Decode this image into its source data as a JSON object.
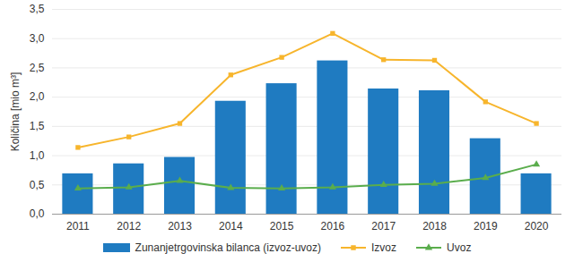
{
  "chart_data": {
    "type": "bar",
    "y_label": "Količina [mio m³]",
    "categories": [
      "2011",
      "2012",
      "2013",
      "2014",
      "2015",
      "2016",
      "2017",
      "2018",
      "2019",
      "2020"
    ],
    "series": [
      {
        "name": "Zunanjetrgovinska bilanca (izvoz-uvoz)",
        "type": "bar",
        "color": "#1f7bc1",
        "values": [
          0.69,
          0.86,
          0.97,
          1.93,
          2.23,
          2.62,
          2.14,
          2.11,
          1.29,
          0.69
        ]
      },
      {
        "name": "Izvoz",
        "type": "line",
        "color": "#f7b52c",
        "marker": "square",
        "values": [
          1.14,
          1.32,
          1.55,
          2.38,
          2.68,
          3.09,
          2.64,
          2.63,
          1.92,
          1.55
        ]
      },
      {
        "name": "Uvoz",
        "type": "line",
        "color": "#5aad4c",
        "marker": "triangle",
        "values": [
          0.44,
          0.46,
          0.57,
          0.45,
          0.44,
          0.46,
          0.5,
          0.52,
          0.62,
          0.85
        ]
      }
    ],
    "ylim": [
      0,
      3.5
    ],
    "yticks": [
      {
        "value": 0,
        "label": "0,0"
      },
      {
        "value": 0.5,
        "label": "0,5"
      },
      {
        "value": 1,
        "label": "1,0"
      },
      {
        "value": 1.5,
        "label": "1,5"
      },
      {
        "value": 2,
        "label": "2,0"
      },
      {
        "value": 2.5,
        "label": "2,5"
      },
      {
        "value": 3,
        "label": "3,0"
      },
      {
        "value": 3.5,
        "label": "3,5"
      }
    ],
    "grid": true,
    "legend": "bottom"
  }
}
